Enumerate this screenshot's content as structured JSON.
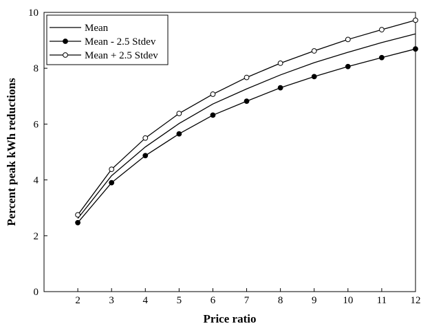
{
  "chart_data": {
    "type": "line",
    "title": "",
    "xlabel": "Price ratio",
    "ylabel": "Percent peak kWh reductions",
    "xlim": [
      1,
      12
    ],
    "ylim": [
      0,
      10
    ],
    "x_ticks": [
      2,
      3,
      4,
      5,
      6,
      7,
      8,
      9,
      10,
      11,
      12
    ],
    "y_ticks": [
      0,
      2,
      4,
      6,
      8,
      10
    ],
    "grid": false,
    "legend_position": "top-left",
    "x": [
      2,
      3,
      4,
      5,
      6,
      7,
      8,
      9,
      10,
      11,
      12
    ],
    "series": [
      {
        "name": "Mean",
        "marker": "none",
        "color": "#000000",
        "values": [
          2.62,
          4.15,
          5.18,
          6.02,
          6.72,
          7.26,
          7.76,
          8.2,
          8.57,
          8.92,
          9.23
        ]
      },
      {
        "name": "Mean - 2.5 Stdev",
        "marker": "filled-circle",
        "color": "#000000",
        "values": [
          2.47,
          3.9,
          4.87,
          5.65,
          6.32,
          6.82,
          7.3,
          7.7,
          8.06,
          8.38,
          8.69
        ]
      },
      {
        "name": "Mean + 2.5 Stdev",
        "marker": "open-circle",
        "color": "#000000",
        "values": [
          2.75,
          4.38,
          5.5,
          6.38,
          7.07,
          7.67,
          8.18,
          8.62,
          9.03,
          9.38,
          9.72
        ]
      }
    ]
  }
}
